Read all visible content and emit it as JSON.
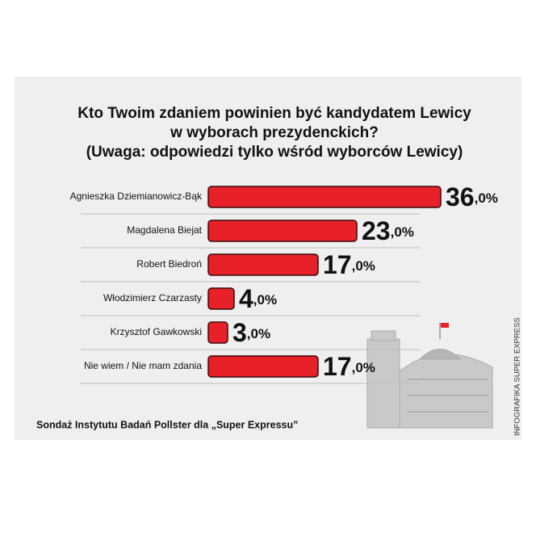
{
  "chart_data": {
    "type": "hbar",
    "title": [
      "Kto Twoim zdaniem powinien być kandydatem Lewicy",
      "w wyborach prezydenckich?"
    ],
    "subtitle": "(Uwaga: odpowiedzi tylko wśród wyborców Lewicy)",
    "categories": [
      "Agnieszka Dziemianowicz-Bąk",
      "Magdalena Biejat",
      "Robert Biedroń",
      "Włodzimierz Czarzasty",
      "Krzysztof Gawkowski",
      "Nie wiem / Nie mam zdania"
    ],
    "values": [
      36,
      23,
      17,
      4,
      3,
      17
    ],
    "value_labels": [
      "36,0%",
      "23,0%",
      "17,0%",
      "4,0%",
      "3,0%",
      "17,0%"
    ],
    "color": "#e8202a",
    "source": "Sondaż Instytutu Badań Pollster dla „Super Expressu”",
    "credit": "INFOGRAFIKA SUPER EXPRESS"
  }
}
